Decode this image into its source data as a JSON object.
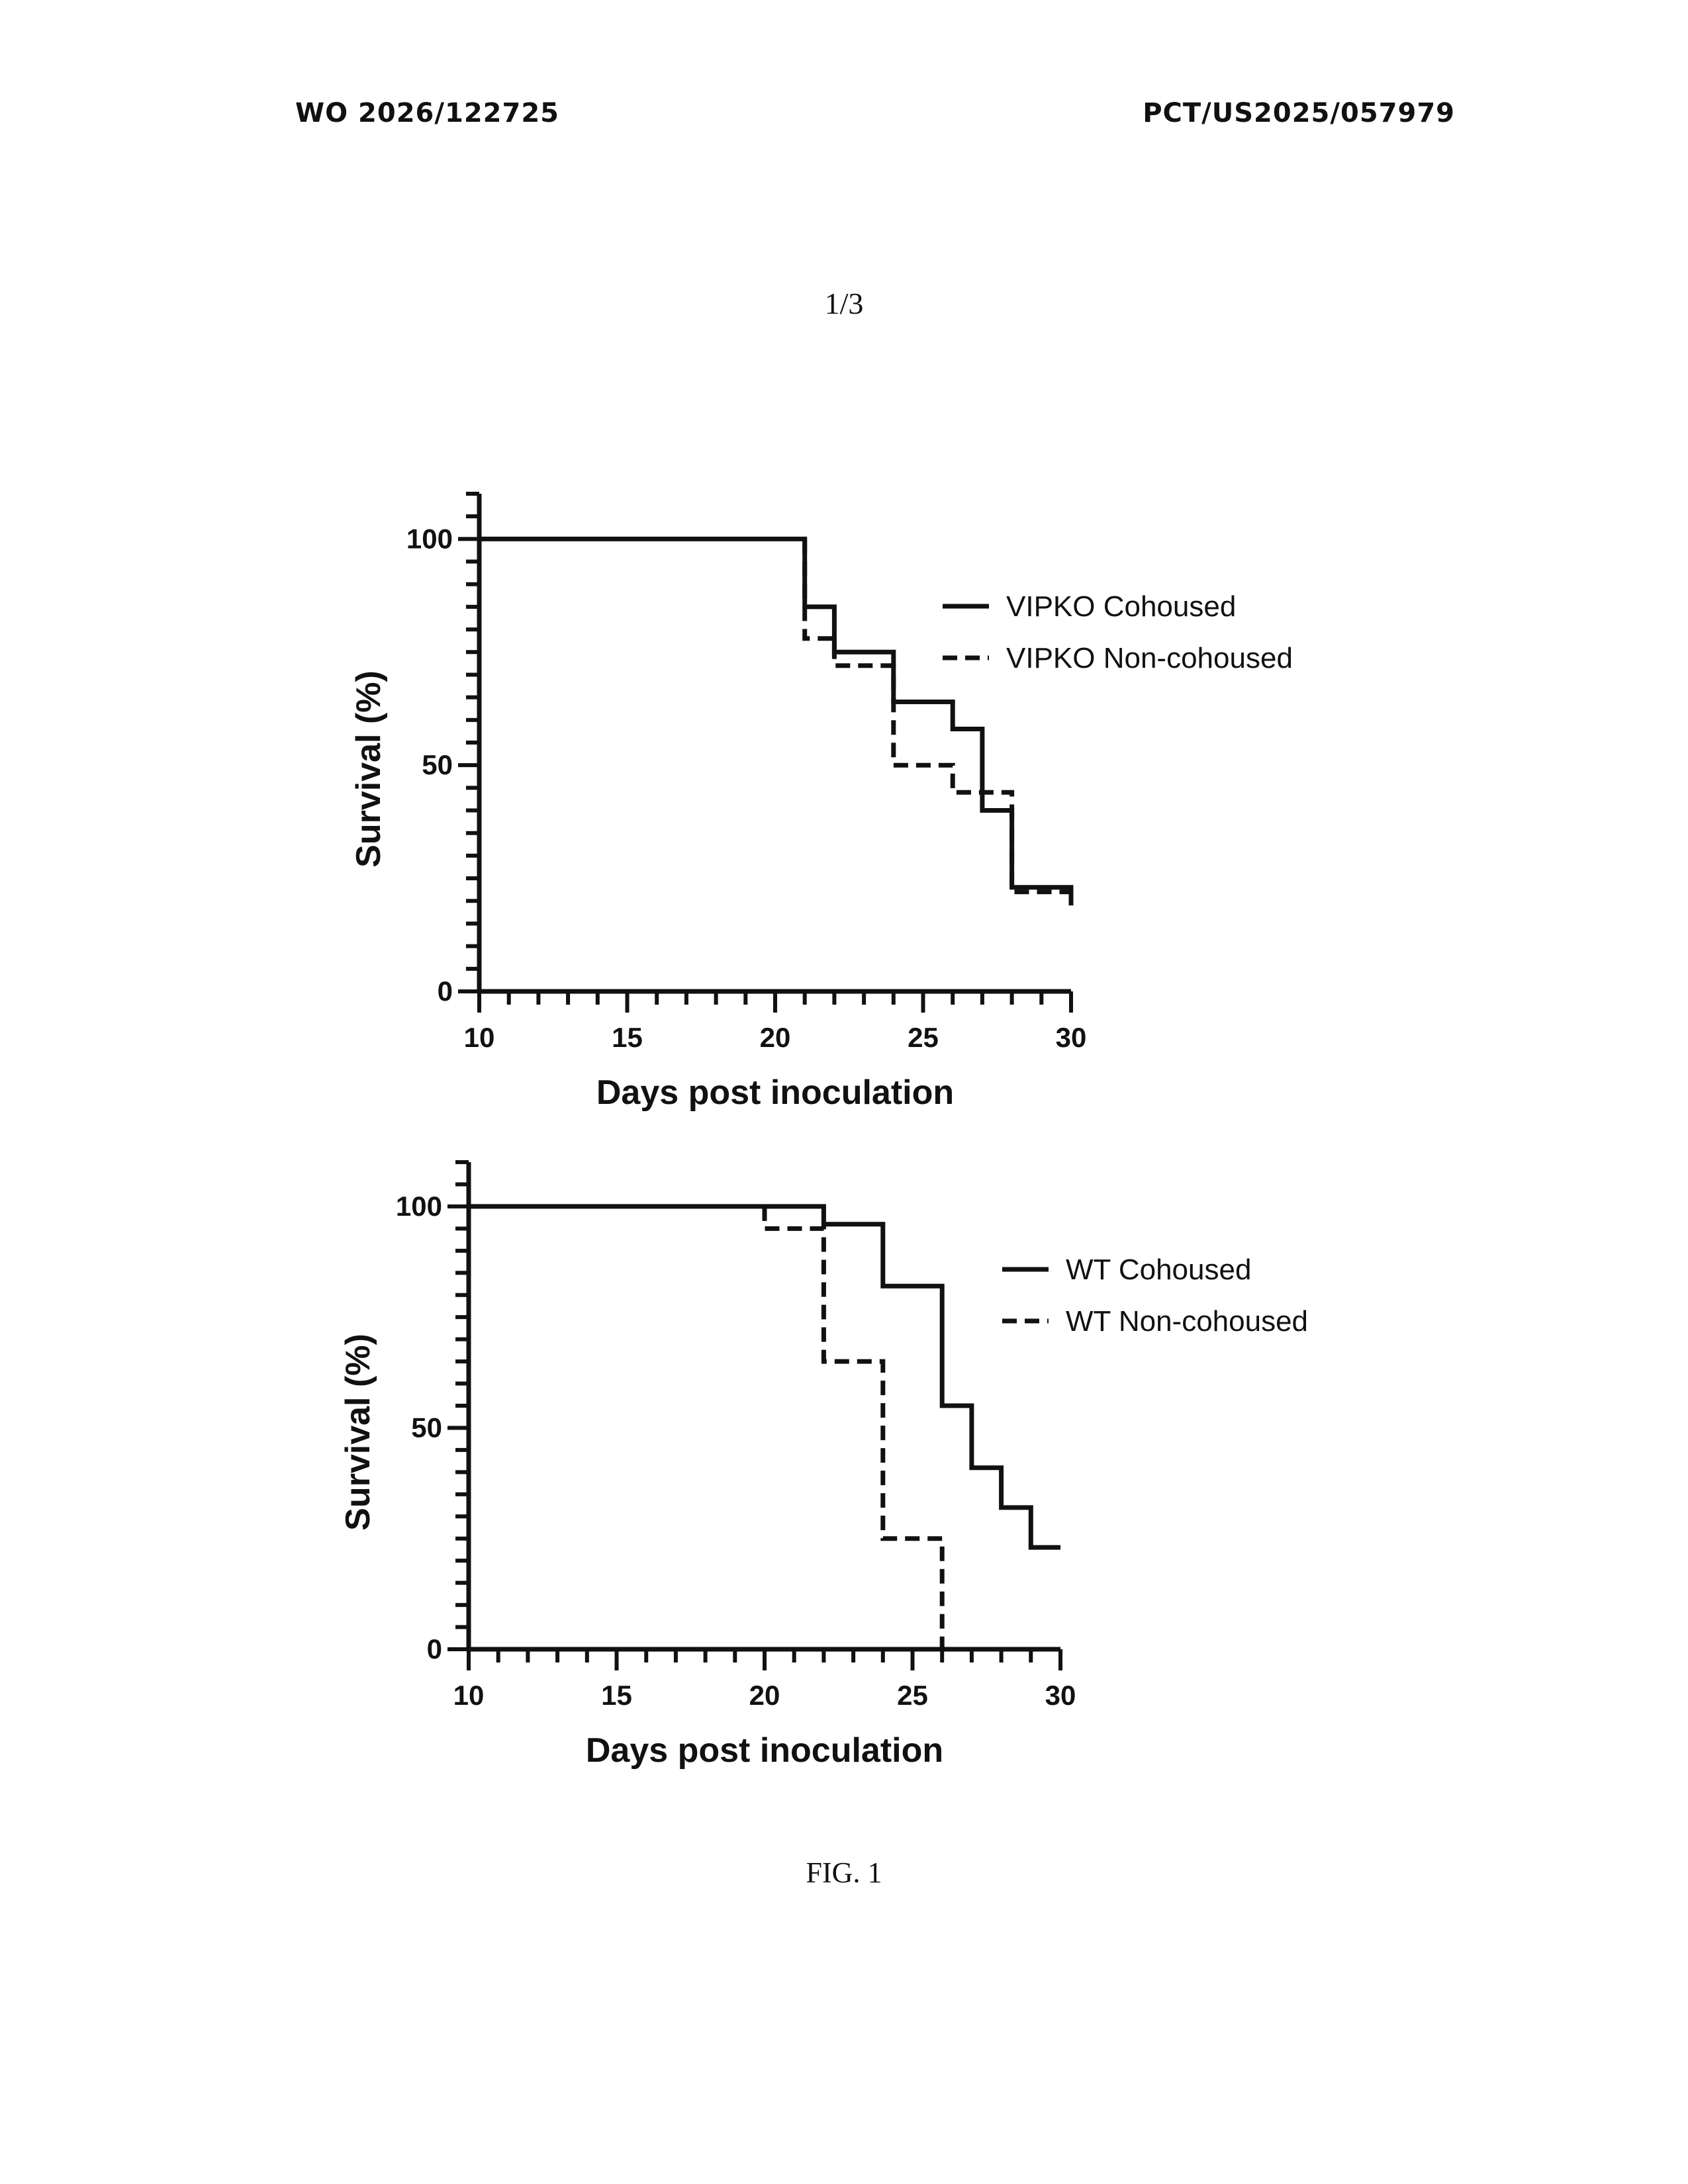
{
  "header": {
    "publication_number": "WO 2026/122725",
    "application_number": "PCT/US2025/057979"
  },
  "page_number": "1/3",
  "figure_label": "FIG. 1",
  "chart_data": [
    {
      "type": "line",
      "step": true,
      "xlabel": "Days post inoculation",
      "ylabel": "Survival (%)",
      "xlim": [
        10,
        30
      ],
      "ylim": [
        0,
        110
      ],
      "xticks": [
        10,
        15,
        20,
        25,
        30
      ],
      "yticks": [
        0,
        50,
        100
      ],
      "x_minor_step": 1,
      "y_minor_step": 5,
      "legend_position": "top-right",
      "series": [
        {
          "name": "VIPKO Cohoused",
          "style": "solid",
          "points": [
            [
              10,
              100
            ],
            [
              21,
              100
            ],
            [
              21,
              85
            ],
            [
              22,
              85
            ],
            [
              22,
              75
            ],
            [
              24,
              75
            ],
            [
              24,
              64
            ],
            [
              26,
              64
            ],
            [
              26,
              58
            ],
            [
              27,
              58
            ],
            [
              27,
              40
            ],
            [
              28,
              40
            ],
            [
              28,
              23
            ],
            [
              30,
              23
            ],
            [
              30,
              19
            ]
          ]
        },
        {
          "name": "VIPKO Non-cohoused",
          "style": "dashed",
          "points": [
            [
              21,
              100
            ],
            [
              21,
              78
            ],
            [
              22,
              78
            ],
            [
              22,
              72
            ],
            [
              24,
              72
            ],
            [
              24,
              50
            ],
            [
              26,
              50
            ],
            [
              26,
              44
            ],
            [
              28,
              44
            ],
            [
              28,
              22
            ],
            [
              30,
              22
            ]
          ]
        }
      ]
    },
    {
      "type": "line",
      "step": true,
      "xlabel": "Days post inoculation",
      "ylabel": "Survival (%)",
      "xlim": [
        10,
        30
      ],
      "ylim": [
        0,
        110
      ],
      "xticks": [
        10,
        15,
        20,
        25,
        30
      ],
      "yticks": [
        0,
        50,
        100
      ],
      "x_minor_step": 1,
      "y_minor_step": 5,
      "legend_position": "top-right",
      "series": [
        {
          "name": "WT Cohoused",
          "style": "solid",
          "points": [
            [
              10,
              100
            ],
            [
              22,
              100
            ],
            [
              22,
              96
            ],
            [
              24,
              96
            ],
            [
              24,
              82
            ],
            [
              26,
              82
            ],
            [
              26,
              55
            ],
            [
              27,
              55
            ],
            [
              27,
              41
            ],
            [
              28,
              41
            ],
            [
              28,
              32
            ],
            [
              29,
              32
            ],
            [
              29,
              23
            ],
            [
              30,
              23
            ]
          ]
        },
        {
          "name": "WT Non-cohoused",
          "style": "dashed",
          "points": [
            [
              20,
              100
            ],
            [
              20,
              95
            ],
            [
              22,
              95
            ],
            [
              22,
              65
            ],
            [
              24,
              65
            ],
            [
              24,
              25
            ],
            [
              26,
              25
            ],
            [
              26,
              0
            ]
          ]
        }
      ]
    }
  ]
}
